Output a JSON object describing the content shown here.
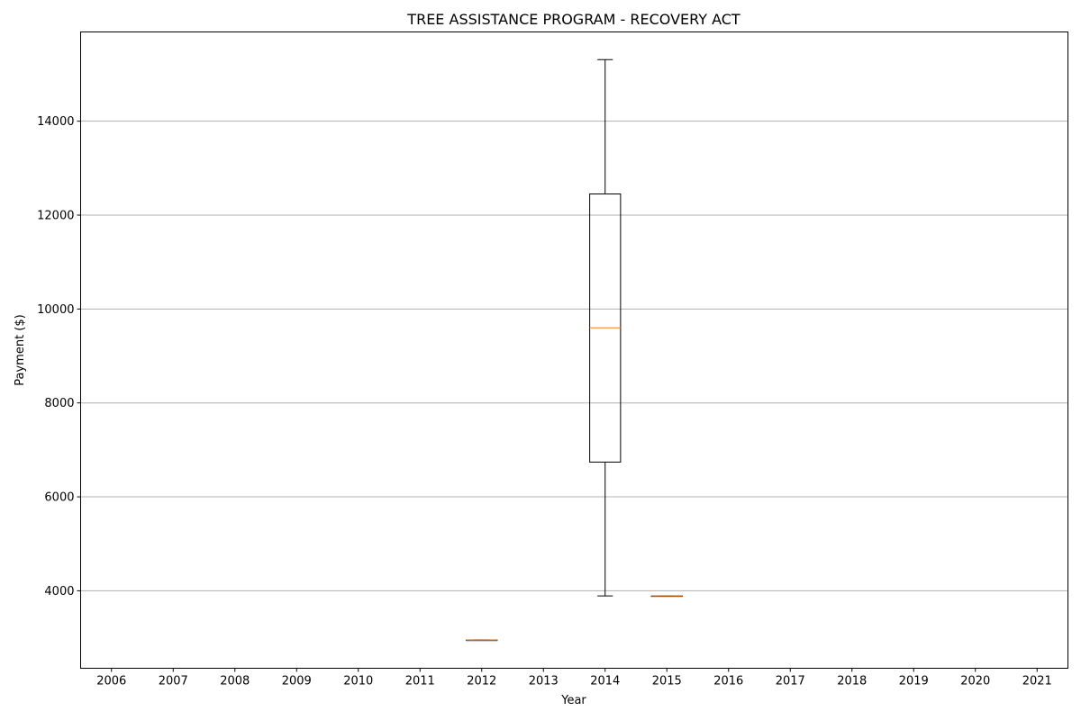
{
  "chart_data": {
    "type": "box",
    "title": "TREE ASSISTANCE PROGRAM - RECOVERY ACT",
    "xlabel": "Year",
    "ylabel": "Payment ($)",
    "categories": [
      "2006",
      "2007",
      "2008",
      "2009",
      "2010",
      "2011",
      "2012",
      "2013",
      "2014",
      "2015",
      "2016",
      "2017",
      "2018",
      "2019",
      "2020",
      "2021"
    ],
    "ylim": [
      2350,
      15900
    ],
    "yticks": [
      4000,
      6000,
      8000,
      10000,
      12000,
      14000
    ],
    "ytick_labels": [
      "4000",
      "6000",
      "8000",
      "10000",
      "12000",
      "14000"
    ],
    "grid": "y",
    "boxes": [
      {
        "category": "2012",
        "whisker_low": 2950,
        "q1": 2950,
        "median": 2950,
        "q3": 2950,
        "whisker_high": 2950
      },
      {
        "category": "2014",
        "whisker_low": 3890,
        "q1": 6740,
        "median": 9600,
        "q3": 12450,
        "whisker_high": 15310
      },
      {
        "category": "2015",
        "whisker_low": 3890,
        "q1": 3890,
        "median": 3890,
        "q3": 3890,
        "whisker_high": 3890
      }
    ],
    "colors": {
      "box": "#000000",
      "median": "#ff7f0e",
      "grid": "#b0b0b0"
    }
  }
}
